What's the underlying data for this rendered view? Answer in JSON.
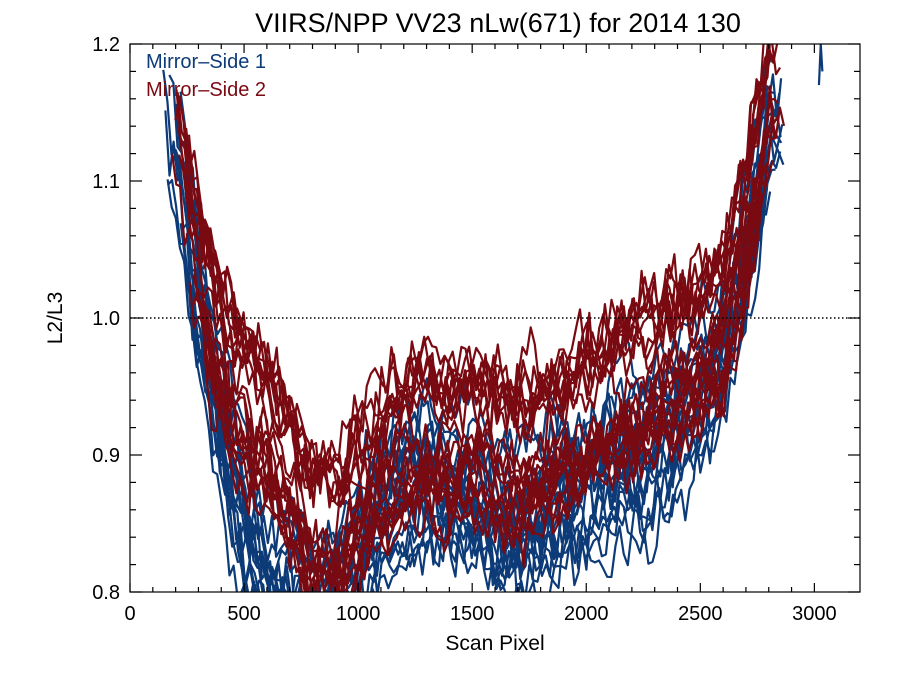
{
  "chart_data": {
    "type": "line",
    "title": "VIIRS/NPP VV23 nLw(671) for 2014 130",
    "xlabel": "Scan Pixel",
    "ylabel": "L2/L3",
    "xlim": [
      0,
      3200
    ],
    "ylim": [
      0.8,
      1.2
    ],
    "xticks": [
      0,
      500,
      1000,
      1500,
      2000,
      2500,
      3000
    ],
    "yticks": [
      0.8,
      0.9,
      1.0,
      1.1,
      1.2
    ],
    "ytick_labels": [
      "0.8",
      "0.9",
      "1.0",
      "1.1",
      "1.2"
    ],
    "reference_line": {
      "y": 1.0,
      "style": "dotted"
    },
    "legend": {
      "placement": "top-left"
    },
    "colors": {
      "mirror_side_1": "#0d3b78",
      "mirror_side_2": "#7a0a12"
    },
    "grid": false,
    "series": [
      {
        "name": "Mirror–Side 1",
        "color": "#0d3b78",
        "note_count": 18,
        "x": [
          120,
          200,
          280,
          360,
          440,
          520,
          600,
          700,
          800,
          900,
          1000,
          1100,
          1200,
          1300,
          1400,
          1500,
          1600,
          1700,
          1800,
          1900,
          2000,
          2100,
          2200,
          2300,
          2400,
          2500,
          2600,
          2700,
          2800
        ],
        "mean": [
          1.17,
          1.12,
          1.04,
          0.96,
          0.89,
          0.84,
          0.81,
          0.8,
          0.79,
          0.8,
          0.83,
          0.86,
          0.88,
          0.89,
          0.88,
          0.87,
          0.86,
          0.85,
          0.86,
          0.87,
          0.88,
          0.89,
          0.9,
          0.91,
          0.93,
          0.95,
          0.98,
          1.05,
          1.14
        ]
      },
      {
        "name": "Mirror–Side 2",
        "color": "#7a0a12",
        "x": [
          120,
          200,
          280,
          360,
          440,
          520,
          600,
          700,
          800,
          900,
          1000,
          1100,
          1200,
          1300,
          1400,
          1500,
          1600,
          1700,
          1800,
          1900,
          2000,
          2100,
          2200,
          2300,
          2400,
          2500,
          2600,
          2700,
          2800
        ],
        "mean": [
          1.18,
          1.13,
          1.06,
          1.0,
          0.96,
          0.94,
          0.92,
          0.89,
          0.85,
          0.84,
          0.87,
          0.9,
          0.91,
          0.92,
          0.91,
          0.92,
          0.91,
          0.9,
          0.91,
          0.92,
          0.93,
          0.94,
          0.95,
          0.96,
          0.97,
          0.98,
          1.0,
          1.07,
          1.16
        ]
      }
    ]
  }
}
